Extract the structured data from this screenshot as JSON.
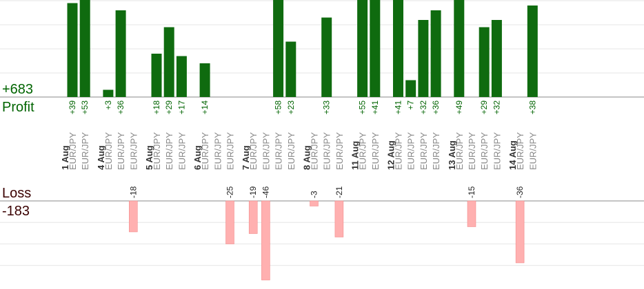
{
  "summary": {
    "profit_total": "+683",
    "profit_label": "Profit",
    "loss_label": "Loss",
    "loss_total": "-183"
  },
  "colors": {
    "profit_bar": "#0f6b0f",
    "profit_text": "#006400",
    "loss_bar": "#ffb0b0",
    "loss_text": "#222222",
    "day_text": "#333333",
    "pair_text": "#888888",
    "grid": "#e6e6e6",
    "axis": "#888888"
  },
  "chart_data": {
    "type": "bar",
    "days": [
      {
        "label": "1 Aug",
        "trades": [
          {
            "pair": "EUR/JPY",
            "profit": 39
          },
          {
            "pair": "EUR/JPY",
            "profit": 53
          }
        ]
      },
      {
        "label": "4 Aug",
        "trades": [
          {
            "pair": "EUR/JPY",
            "profit": 3
          },
          {
            "pair": "EUR/JPY",
            "profit": 36
          },
          {
            "pair": "EUR/JPY",
            "loss": -18
          }
        ]
      },
      {
        "label": "5 Aug",
        "trades": [
          {
            "pair": "EUR/JPY",
            "profit": 18
          },
          {
            "pair": "EUR/JPY",
            "profit": 29
          },
          {
            "pair": "EUR/JPY",
            "profit": 17
          }
        ]
      },
      {
        "label": "6 Aug",
        "trades": [
          {
            "pair": "EUR/JPY",
            "profit": 14
          },
          {
            "pair": "EUR/JPY"
          },
          {
            "pair": "EUR/JPY",
            "loss": -25
          }
        ]
      },
      {
        "label": "7 Aug",
        "trades": [
          {
            "pair": "EUR/JPY",
            "loss": -19
          },
          {
            "pair": "EUR/JPY",
            "loss": -46
          },
          {
            "pair": "EUR/JPY",
            "profit": 58
          },
          {
            "pair": "EUR/JPY",
            "profit": 23
          }
        ]
      },
      {
        "label": "8 Aug",
        "trades": [
          {
            "pair": "EUR/JPY",
            "loss": -3
          },
          {
            "pair": "EUR/JPY",
            "profit": 33
          },
          {
            "pair": "EUR/JPY",
            "loss": -21
          }
        ]
      },
      {
        "label": "11 Aug",
        "trades": [
          {
            "pair": "EUR/JPY",
            "profit": 55
          },
          {
            "pair": "EUR/JPY",
            "profit": 41
          }
        ]
      },
      {
        "label": "12 Aug",
        "trades": [
          {
            "pair": "EUR/JPY",
            "profit": 41
          },
          {
            "pair": "EUR/JPY",
            "profit": 7
          },
          {
            "pair": "EUR/JPY",
            "profit": 32
          },
          {
            "pair": "EUR/JPY",
            "profit": 36
          }
        ]
      },
      {
        "label": "13 Aug",
        "trades": [
          {
            "pair": "EUR/JPY",
            "profit": 49
          },
          {
            "pair": "EUR/JPY",
            "loss": -15
          },
          {
            "pair": "EUR/JPY",
            "profit": 29
          },
          {
            "pair": "EUR/JPY",
            "profit": 32
          }
        ]
      },
      {
        "label": "14 Aug",
        "trades": [
          {
            "pair": "EUR/JPY",
            "loss": -36
          },
          {
            "pair": "EUR/JPY",
            "profit": 38
          }
        ]
      }
    ],
    "profit_axis_max": 40,
    "loss_axis_max": 40
  }
}
